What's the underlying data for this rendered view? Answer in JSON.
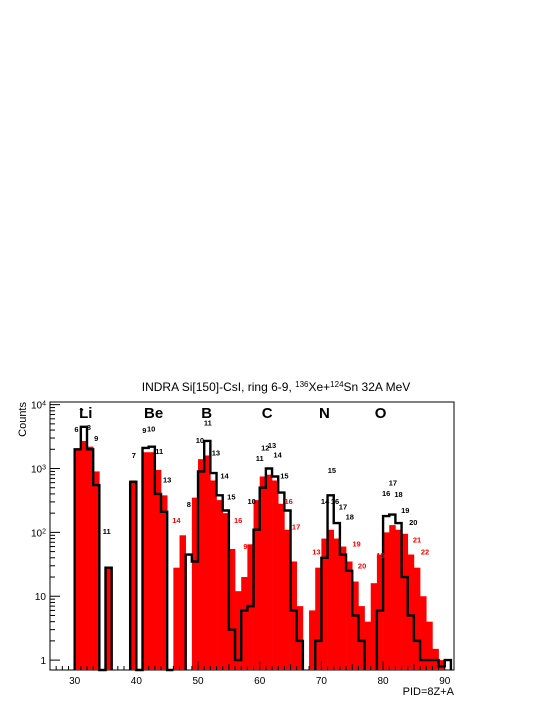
{
  "chart_data": {
    "type": "bar",
    "title": "INDRA Si[150]-CsI, ring 6-9, ",
    "title_isotope_a": "136",
    "title_elem_a": "Xe+",
    "title_isotope_b": "124",
    "title_elem_b": "Sn 32A MeV",
    "xlabel": "PID=8Z+A",
    "ylabel": "Counts",
    "xlim": [
      26,
      91.5
    ],
    "ylim": [
      0.7,
      11000
    ],
    "yscale": "log",
    "grid": false,
    "x_ticks": [
      "30",
      "40",
      "50",
      "60",
      "70",
      "80",
      "90"
    ],
    "y_ticks": [
      {
        "base": "1",
        "exp": ""
      },
      {
        "base": "10",
        "exp": ""
      },
      {
        "base": "10",
        "exp": "2"
      },
      {
        "base": "10",
        "exp": "3"
      },
      {
        "base": "10",
        "exp": "4"
      }
    ],
    "elements": [
      "Li",
      "Be",
      "B",
      "C",
      "N",
      "O"
    ],
    "bin_width": 1,
    "series": [
      {
        "name": "red_filled",
        "color": "#ff0000",
        "bins": [
          [
            30,
            2000
          ],
          [
            31,
            2700
          ],
          [
            32,
            2200
          ],
          [
            33,
            900
          ],
          [
            35,
            28
          ],
          [
            39,
            650
          ],
          [
            41,
            1800
          ],
          [
            42,
            1800
          ],
          [
            43,
            950
          ],
          [
            44,
            380
          ],
          [
            46,
            28
          ],
          [
            47,
            90
          ],
          [
            49,
            350
          ],
          [
            50,
            1400
          ],
          [
            51,
            1600
          ],
          [
            52,
            650
          ],
          [
            53,
            320
          ],
          [
            54,
            200
          ],
          [
            55,
            55
          ],
          [
            56,
            12
          ],
          [
            57,
            20
          ],
          [
            58,
            65
          ],
          [
            59,
            320
          ],
          [
            60,
            750
          ],
          [
            61,
            800
          ],
          [
            62,
            650
          ],
          [
            63,
            280
          ],
          [
            64,
            110
          ],
          [
            65,
            35
          ],
          [
            66,
            7
          ],
          [
            68,
            6
          ],
          [
            69,
            28
          ],
          [
            70,
            80
          ],
          [
            71,
            110
          ],
          [
            72,
            80
          ],
          [
            73,
            60
          ],
          [
            74,
            35
          ],
          [
            75,
            17
          ],
          [
            76,
            7
          ],
          [
            77,
            4
          ],
          [
            78,
            16
          ],
          [
            79,
            45
          ],
          [
            80,
            100
          ],
          [
            81,
            130
          ],
          [
            82,
            110
          ],
          [
            83,
            95
          ],
          [
            84,
            45
          ],
          [
            85,
            28
          ],
          [
            86,
            10
          ],
          [
            87,
            4
          ],
          [
            88,
            1.5
          ],
          [
            89,
            1
          ]
        ]
      },
      {
        "name": "black_outline",
        "color": "#000000",
        "bins": [
          [
            30,
            2000
          ],
          [
            31,
            4500
          ],
          [
            32,
            2000
          ],
          [
            33,
            550
          ],
          [
            34,
            0
          ],
          [
            35,
            28
          ],
          [
            39,
            620
          ],
          [
            40,
            0
          ],
          [
            41,
            2100
          ],
          [
            42,
            2200
          ],
          [
            43,
            400
          ],
          [
            44,
            210
          ],
          [
            45,
            0
          ],
          [
            48,
            45
          ],
          [
            49,
            35
          ],
          [
            50,
            900
          ],
          [
            51,
            2700
          ],
          [
            52,
            850
          ],
          [
            53,
            380
          ],
          [
            54,
            220
          ],
          [
            55,
            3
          ],
          [
            56,
            1
          ],
          [
            57,
            6
          ],
          [
            58,
            7
          ],
          [
            59,
            110
          ],
          [
            60,
            500
          ],
          [
            61,
            1000
          ],
          [
            62,
            750
          ],
          [
            63,
            420
          ],
          [
            64,
            220
          ],
          [
            65,
            6
          ],
          [
            66,
            2
          ],
          [
            69,
            2
          ],
          [
            70,
            40
          ],
          [
            71,
            380
          ],
          [
            72,
            140
          ],
          [
            73,
            45
          ],
          [
            74,
            25
          ],
          [
            75,
            5
          ],
          [
            76,
            2
          ],
          [
            79,
            6
          ],
          [
            80,
            180
          ],
          [
            81,
            190
          ],
          [
            82,
            140
          ],
          [
            83,
            20
          ],
          [
            84,
            5
          ],
          [
            85,
            2
          ],
          [
            86,
            1
          ],
          [
            87,
            1
          ],
          [
            88,
            1
          ],
          [
            89,
            0.8
          ],
          [
            90,
            1
          ]
        ]
      }
    ],
    "annotations": [
      {
        "text": "6",
        "x": 30.3,
        "y": 3700,
        "color": "#000000"
      },
      {
        "text": "7",
        "x": 31.1,
        "y": 7200,
        "color": "#000000"
      },
      {
        "text": "8",
        "x": 32.3,
        "y": 4000,
        "color": "#000000"
      },
      {
        "text": "9",
        "x": 33.5,
        "y": 2700,
        "color": "#000000"
      },
      {
        "text": "11",
        "x": 35.2,
        "y": 95,
        "color": "#000000"
      },
      {
        "text": "7",
        "x": 39.6,
        "y": 1450,
        "color": "#000000"
      },
      {
        "text": "9",
        "x": 41.3,
        "y": 3600,
        "color": "#000000"
      },
      {
        "text": "10",
        "x": 42.4,
        "y": 3800,
        "color": "#000000"
      },
      {
        "text": "11",
        "x": 43.7,
        "y": 1700,
        "color": "#000000"
      },
      {
        "text": "13",
        "x": 45.0,
        "y": 600,
        "color": "#000000"
      },
      {
        "text": "14",
        "x": 46.5,
        "y": 140,
        "color": "#ff0000"
      },
      {
        "text": "8",
        "x": 48.5,
        "y": 250,
        "color": "#000000"
      },
      {
        "text": "10",
        "x": 50.3,
        "y": 2500,
        "color": "#000000"
      },
      {
        "text": "11",
        "x": 51.6,
        "y": 4700,
        "color": "#000000"
      },
      {
        "text": "13",
        "x": 52.9,
        "y": 1600,
        "color": "#000000"
      },
      {
        "text": "14",
        "x": 54.3,
        "y": 700,
        "color": "#000000"
      },
      {
        "text": "15",
        "x": 55.4,
        "y": 330,
        "color": "#000000"
      },
      {
        "text": "16",
        "x": 56.5,
        "y": 140,
        "color": "#ff0000"
      },
      {
        "text": "9",
        "x": 57.7,
        "y": 55,
        "color": "#ff0000"
      },
      {
        "text": "10",
        "x": 58.7,
        "y": 280,
        "color": "#000000"
      },
      {
        "text": "11",
        "x": 60.0,
        "y": 1300,
        "color": "#000000"
      },
      {
        "text": "12",
        "x": 60.9,
        "y": 1900,
        "color": "#000000"
      },
      {
        "text": "13",
        "x": 62.0,
        "y": 2100,
        "color": "#000000"
      },
      {
        "text": "14",
        "x": 62.9,
        "y": 1500,
        "color": "#000000"
      },
      {
        "text": "15",
        "x": 64.0,
        "y": 700,
        "color": "#000000"
      },
      {
        "text": "16",
        "x": 64.7,
        "y": 280,
        "color": "#ff0000"
      },
      {
        "text": "17",
        "x": 65.9,
        "y": 110,
        "color": "#ff0000"
      },
      {
        "text": "13",
        "x": 69.2,
        "y": 45,
        "color": "#ff0000"
      },
      {
        "text": "14",
        "x": 70.6,
        "y": 280,
        "color": "#000000"
      },
      {
        "text": "15",
        "x": 71.7,
        "y": 850,
        "color": "#000000"
      },
      {
        "text": "16",
        "x": 72.2,
        "y": 280,
        "color": "#000000"
      },
      {
        "text": "17",
        "x": 73.5,
        "y": 230,
        "color": "#000000"
      },
      {
        "text": "18",
        "x": 74.6,
        "y": 160,
        "color": "#000000"
      },
      {
        "text": "19",
        "x": 75.7,
        "y": 60,
        "color": "#ff0000"
      },
      {
        "text": "20",
        "x": 76.6,
        "y": 27,
        "color": "#ff0000"
      },
      {
        "text": "15",
        "x": 79.6,
        "y": 40,
        "color": "#ff0000"
      },
      {
        "text": "16",
        "x": 80.5,
        "y": 370,
        "color": "#000000"
      },
      {
        "text": "17",
        "x": 81.6,
        "y": 540,
        "color": "#000000"
      },
      {
        "text": "18",
        "x": 82.5,
        "y": 360,
        "color": "#000000"
      },
      {
        "text": "19",
        "x": 83.6,
        "y": 200,
        "color": "#000000"
      },
      {
        "text": "20",
        "x": 84.9,
        "y": 130,
        "color": "#000000"
      },
      {
        "text": "21",
        "x": 85.5,
        "y": 70,
        "color": "#ff0000"
      },
      {
        "text": "22",
        "x": 86.8,
        "y": 45,
        "color": "#ff0000"
      }
    ],
    "element_label_positions": [
      31.8,
      42.8,
      51.4,
      61.2,
      70.5,
      79.6
    ]
  }
}
